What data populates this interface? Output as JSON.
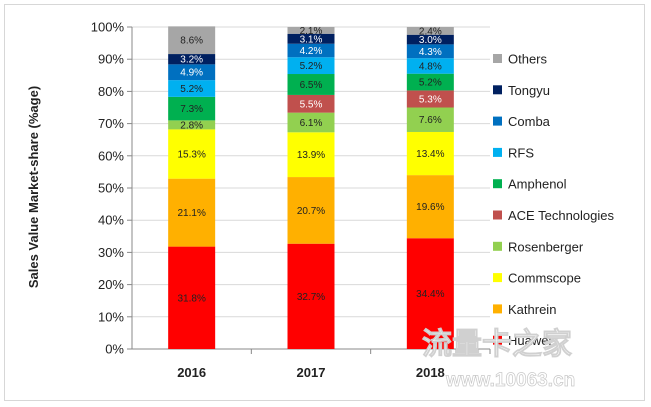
{
  "chart_data": {
    "type": "stacked-bar",
    "ylabel": "Sales Value Market-share (%age)",
    "xlabel": "",
    "categories": [
      "2016",
      "2017",
      "2018"
    ],
    "ylim": [
      0,
      100
    ],
    "yticks": [
      "0%",
      "10%",
      "20%",
      "30%",
      "40%",
      "50%",
      "60%",
      "70%",
      "80%",
      "90%",
      "100%"
    ],
    "legend_position": "right",
    "grid": true,
    "series": [
      {
        "name": "Huawei",
        "color": "#ff0000",
        "values": [
          31.8,
          32.7,
          34.4
        ],
        "labels": [
          "31.8%",
          "32.7%",
          "34.4%"
        ]
      },
      {
        "name": "Kathrein",
        "color": "#ffb000",
        "values": [
          21.1,
          20.7,
          19.6
        ],
        "labels": [
          "21.1%",
          "20.7%",
          "19.6%"
        ]
      },
      {
        "name": "Commscope",
        "color": "#ffff00",
        "values": [
          15.3,
          13.9,
          13.4
        ],
        "labels": [
          "15.3%",
          "13.9%",
          "13.4%"
        ]
      },
      {
        "name": "Rosenberger",
        "color": "#92d050",
        "values": [
          2.8,
          6.1,
          7.6
        ],
        "labels": [
          "2.8%",
          "6.1%",
          "7.6%"
        ]
      },
      {
        "name": "ACE Technologies",
        "color": "#c0504d",
        "values": [
          0,
          5.5,
          5.3
        ],
        "labels": [
          "",
          "5.5%",
          "5.3%"
        ]
      },
      {
        "name": "Amphenol",
        "color": "#00b050",
        "values": [
          7.3,
          6.5,
          5.2
        ],
        "labels": [
          "7.3%",
          "6.5%",
          "5.2%"
        ]
      },
      {
        "name": "RFS",
        "color": "#00b0f0",
        "values": [
          5.2,
          5.2,
          4.8
        ],
        "labels": [
          "5.2%",
          "5.2%",
          "4.8%"
        ]
      },
      {
        "name": "Comba",
        "color": "#0070c0",
        "values": [
          4.9,
          4.2,
          4.3
        ],
        "labels": [
          "4.9%",
          "4.2%",
          "4.3%"
        ]
      },
      {
        "name": "Tongyu",
        "color": "#002060",
        "values": [
          3.2,
          3.1,
          3.0
        ],
        "labels": [
          "3.2%",
          "3.1%",
          "3.0%"
        ]
      },
      {
        "name": "Others",
        "color": "#a6a6a6",
        "values": [
          8.6,
          2.1,
          2.4
        ],
        "labels": [
          "8.6%",
          "2.1%",
          "2.4%"
        ]
      }
    ]
  },
  "watermark": {
    "text": "流量卡之家",
    "url": "www.10063.cn"
  }
}
